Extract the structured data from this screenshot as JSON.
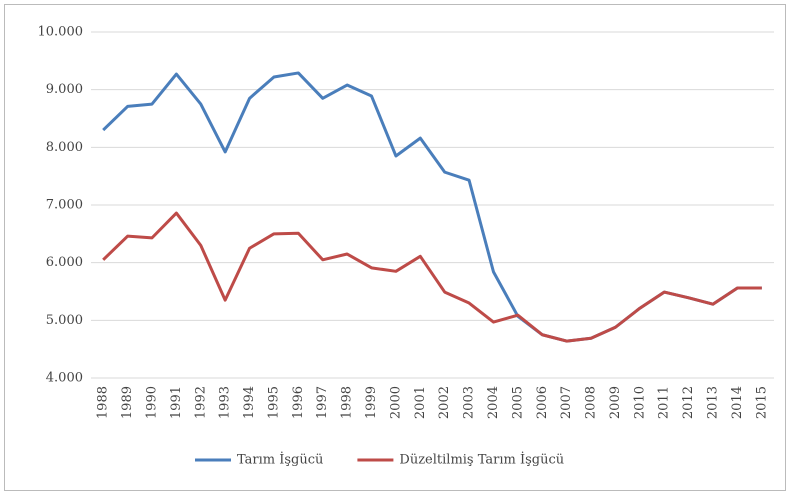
{
  "chart_data": {
    "type": "line",
    "categories": [
      "1988",
      "1989",
      "1990",
      "1991",
      "1992",
      "1993",
      "1994",
      "1995",
      "1996",
      "1997",
      "1998",
      "1999",
      "2000",
      "2001",
      "2002",
      "2003",
      "2004",
      "2005",
      "2006",
      "2007",
      "2008",
      "2009",
      "2010",
      "2011",
      "2012",
      "2013",
      "2014",
      "2015"
    ],
    "series": [
      {
        "name": "Tarım İşgücü",
        "color": "#4a7ebb",
        "values": [
          8300,
          8710,
          8750,
          9270,
          8750,
          7920,
          8850,
          9220,
          9290,
          8850,
          9080,
          8890,
          7850,
          8160,
          7570,
          7430,
          5840,
          5070,
          4750,
          4640,
          4690,
          4880,
          5210,
          5490,
          5390,
          5280,
          5560,
          5560
        ]
      },
      {
        "name": "Düzeltilmiş Tarım İşgücü",
        "color": "#be4b48",
        "values": [
          6050,
          6460,
          6430,
          6860,
          6300,
          5350,
          6250,
          6500,
          6510,
          6050,
          6150,
          5910,
          5850,
          6110,
          5490,
          5300,
          4970,
          5090,
          4750,
          4640,
          4690,
          4880,
          5210,
          5490,
          5390,
          5280,
          5560,
          5560
        ]
      }
    ],
    "ylim": [
      4000,
      10000
    ],
    "yticks": [
      {
        "value": 4000,
        "label": "4.000"
      },
      {
        "value": 5000,
        "label": "5.000"
      },
      {
        "value": 6000,
        "label": "6.000"
      },
      {
        "value": 7000,
        "label": "7.000"
      },
      {
        "value": 8000,
        "label": "8.000"
      },
      {
        "value": 9000,
        "label": "9.000"
      },
      {
        "value": 10000,
        "label": "10.000"
      }
    ],
    "grid": true,
    "legend": "bottom"
  }
}
